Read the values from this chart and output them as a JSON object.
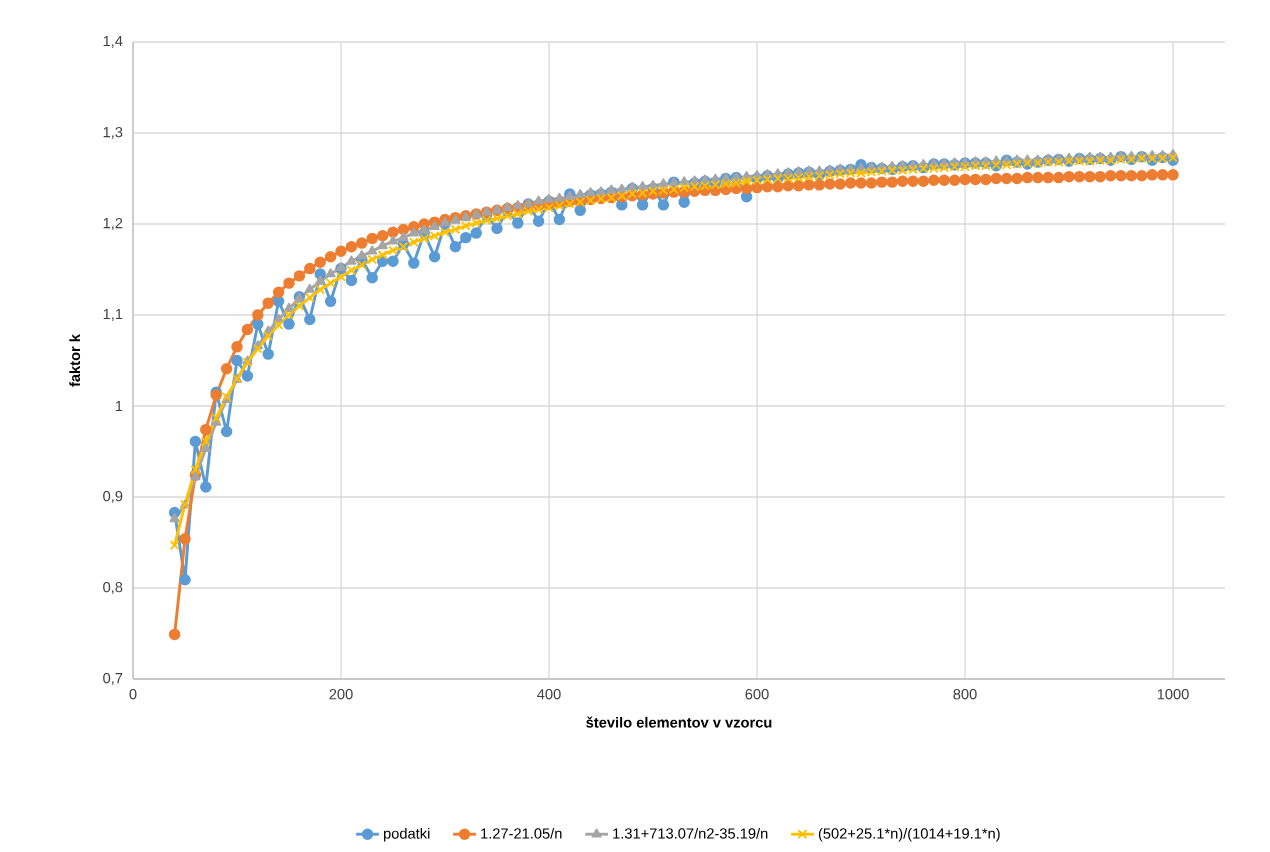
{
  "chart_data": {
    "type": "line",
    "xlabel": "število elementov v vzorcu",
    "ylabel": "faktor k",
    "x": [
      40,
      50,
      60,
      70,
      80,
      90,
      100,
      110,
      120,
      130,
      140,
      150,
      160,
      170,
      180,
      190,
      200,
      210,
      220,
      230,
      240,
      250,
      260,
      270,
      280,
      290,
      300,
      310,
      320,
      330,
      340,
      350,
      360,
      370,
      380,
      390,
      400,
      410,
      420,
      430,
      440,
      450,
      460,
      470,
      480,
      490,
      500,
      510,
      520,
      530,
      540,
      550,
      560,
      570,
      580,
      590,
      600,
      610,
      620,
      630,
      640,
      650,
      660,
      670,
      680,
      690,
      700,
      710,
      720,
      730,
      740,
      750,
      760,
      770,
      780,
      790,
      800,
      810,
      820,
      830,
      840,
      850,
      860,
      870,
      880,
      890,
      900,
      910,
      920,
      930,
      940,
      950,
      960,
      970,
      980,
      990,
      1000
    ],
    "series": [
      {
        "name": "podatki",
        "color": "#5b9bd5",
        "marker": "circle",
        "values": [
          0.883,
          0.809,
          0.961,
          0.911,
          1.015,
          0.972,
          1.05,
          1.033,
          1.09,
          1.057,
          1.115,
          1.09,
          1.12,
          1.095,
          1.145,
          1.115,
          1.151,
          1.138,
          1.161,
          1.141,
          1.159,
          1.159,
          1.178,
          1.157,
          1.19,
          1.164,
          1.2,
          1.175,
          1.185,
          1.19,
          1.21,
          1.195,
          1.215,
          1.201,
          1.222,
          1.203,
          1.225,
          1.205,
          1.233,
          1.215,
          1.232,
          1.233,
          1.235,
          1.221,
          1.239,
          1.221,
          1.239,
          1.221,
          1.246,
          1.224,
          1.245,
          1.247,
          1.246,
          1.25,
          1.251,
          1.23,
          1.25,
          1.253,
          1.25,
          1.255,
          1.256,
          1.257,
          1.254,
          1.258,
          1.259,
          1.26,
          1.265,
          1.262,
          1.261,
          1.26,
          1.263,
          1.264,
          1.262,
          1.266,
          1.266,
          1.265,
          1.267,
          1.267,
          1.267,
          1.264,
          1.27,
          1.268,
          1.266,
          1.268,
          1.27,
          1.271,
          1.269,
          1.272,
          1.271,
          1.272,
          1.27,
          1.274,
          1.271,
          1.274,
          1.27,
          1.273,
          1.27
        ]
      },
      {
        "name": "1.27-21.05/n",
        "color": "#ed7d31",
        "marker": "circle",
        "values": [
          0.749,
          0.854,
          0.924,
          0.974,
          1.012,
          1.041,
          1.065,
          1.084,
          1.1,
          1.113,
          1.125,
          1.135,
          1.143,
          1.151,
          1.158,
          1.164,
          1.17,
          1.175,
          1.179,
          1.184,
          1.187,
          1.191,
          1.194,
          1.197,
          1.2,
          1.202,
          1.205,
          1.207,
          1.209,
          1.211,
          1.213,
          1.215,
          1.217,
          1.218,
          1.22,
          1.221,
          1.222,
          1.224,
          1.225,
          1.226,
          1.227,
          1.228,
          1.229,
          1.23,
          1.231,
          1.232,
          1.233,
          1.234,
          1.235,
          1.235,
          1.236,
          1.237,
          1.237,
          1.238,
          1.239,
          1.239,
          1.24,
          1.241,
          1.241,
          1.242,
          1.242,
          1.243,
          1.243,
          1.244,
          1.244,
          1.245,
          1.245,
          1.245,
          1.246,
          1.246,
          1.247,
          1.247,
          1.247,
          1.248,
          1.248,
          1.248,
          1.249,
          1.249,
          1.249,
          1.25,
          1.25,
          1.25,
          1.251,
          1.251,
          1.251,
          1.251,
          1.252,
          1.252,
          1.252,
          1.252,
          1.253,
          1.253,
          1.253,
          1.253,
          1.254,
          1.254,
          1.254
        ]
      },
      {
        "name": "1.31+713.07/n2-35.19/n",
        "color": "#a5a5a5",
        "marker": "triangle",
        "values": [
          0.876,
          0.891,
          0.922,
          0.953,
          0.982,
          1.007,
          1.029,
          1.049,
          1.066,
          1.082,
          1.095,
          1.107,
          1.118,
          1.128,
          1.137,
          1.145,
          1.152,
          1.159,
          1.165,
          1.17,
          1.176,
          1.181,
          1.185,
          1.19,
          1.193,
          1.197,
          1.201,
          1.204,
          1.207,
          1.21,
          1.213,
          1.215,
          1.218,
          1.22,
          1.222,
          1.225,
          1.227,
          1.228,
          1.23,
          1.232,
          1.234,
          1.235,
          1.237,
          1.238,
          1.24,
          1.241,
          1.242,
          1.244,
          1.245,
          1.246,
          1.247,
          1.248,
          1.249,
          1.25,
          1.251,
          1.252,
          1.253,
          1.254,
          1.255,
          1.256,
          1.257,
          1.258,
          1.258,
          1.259,
          1.26,
          1.26,
          1.261,
          1.262,
          1.262,
          1.263,
          1.264,
          1.264,
          1.265,
          1.266,
          1.266,
          1.267,
          1.267,
          1.268,
          1.268,
          1.269,
          1.269,
          1.27,
          1.27,
          1.27,
          1.271,
          1.271,
          1.272,
          1.272,
          1.273,
          1.273,
          1.273,
          1.274,
          1.274,
          1.274,
          1.275,
          1.275,
          1.276
        ]
      },
      {
        "name": "(502+25.1*n)/(1014+19.1*n)",
        "color": "#ffc000",
        "marker": "cross",
        "values": [
          0.847,
          0.892,
          0.93,
          0.961,
          0.987,
          1.01,
          1.03,
          1.048,
          1.063,
          1.077,
          1.089,
          1.1,
          1.11,
          1.119,
          1.128,
          1.135,
          1.142,
          1.149,
          1.155,
          1.161,
          1.166,
          1.171,
          1.175,
          1.18,
          1.184,
          1.187,
          1.191,
          1.194,
          1.198,
          1.201,
          1.204,
          1.206,
          1.209,
          1.211,
          1.214,
          1.216,
          1.218,
          1.22,
          1.222,
          1.224,
          1.226,
          1.228,
          1.229,
          1.231,
          1.233,
          1.234,
          1.236,
          1.237,
          1.238,
          1.24,
          1.241,
          1.242,
          1.243,
          1.244,
          1.245,
          1.247,
          1.248,
          1.249,
          1.25,
          1.25,
          1.251,
          1.252,
          1.253,
          1.254,
          1.255,
          1.256,
          1.256,
          1.257,
          1.258,
          1.259,
          1.259,
          1.26,
          1.261,
          1.261,
          1.262,
          1.263,
          1.263,
          1.264,
          1.264,
          1.265,
          1.265,
          1.266,
          1.267,
          1.267,
          1.268,
          1.268,
          1.269,
          1.269,
          1.269,
          1.27,
          1.27,
          1.271,
          1.271,
          1.272,
          1.272,
          1.272,
          1.273
        ]
      }
    ],
    "xlim": [
      0,
      1050
    ],
    "xticks": [
      0,
      200,
      400,
      600,
      800,
      1000
    ],
    "ylim": [
      0.7,
      1.4
    ],
    "yticks": [
      {
        "value": 0.7,
        "label": "0,7"
      },
      {
        "value": 0.8,
        "label": "0,8"
      },
      {
        "value": 0.9,
        "label": "0,9"
      },
      1,
      {
        "value": 1.1,
        "label": "1,1"
      },
      {
        "value": 1.2,
        "label": "1,2"
      },
      {
        "value": 1.3,
        "label": "1,3"
      },
      {
        "value": 1.4,
        "label": "1,4"
      }
    ],
    "grid": true,
    "legend": "bottom",
    "line_style": "solid"
  }
}
